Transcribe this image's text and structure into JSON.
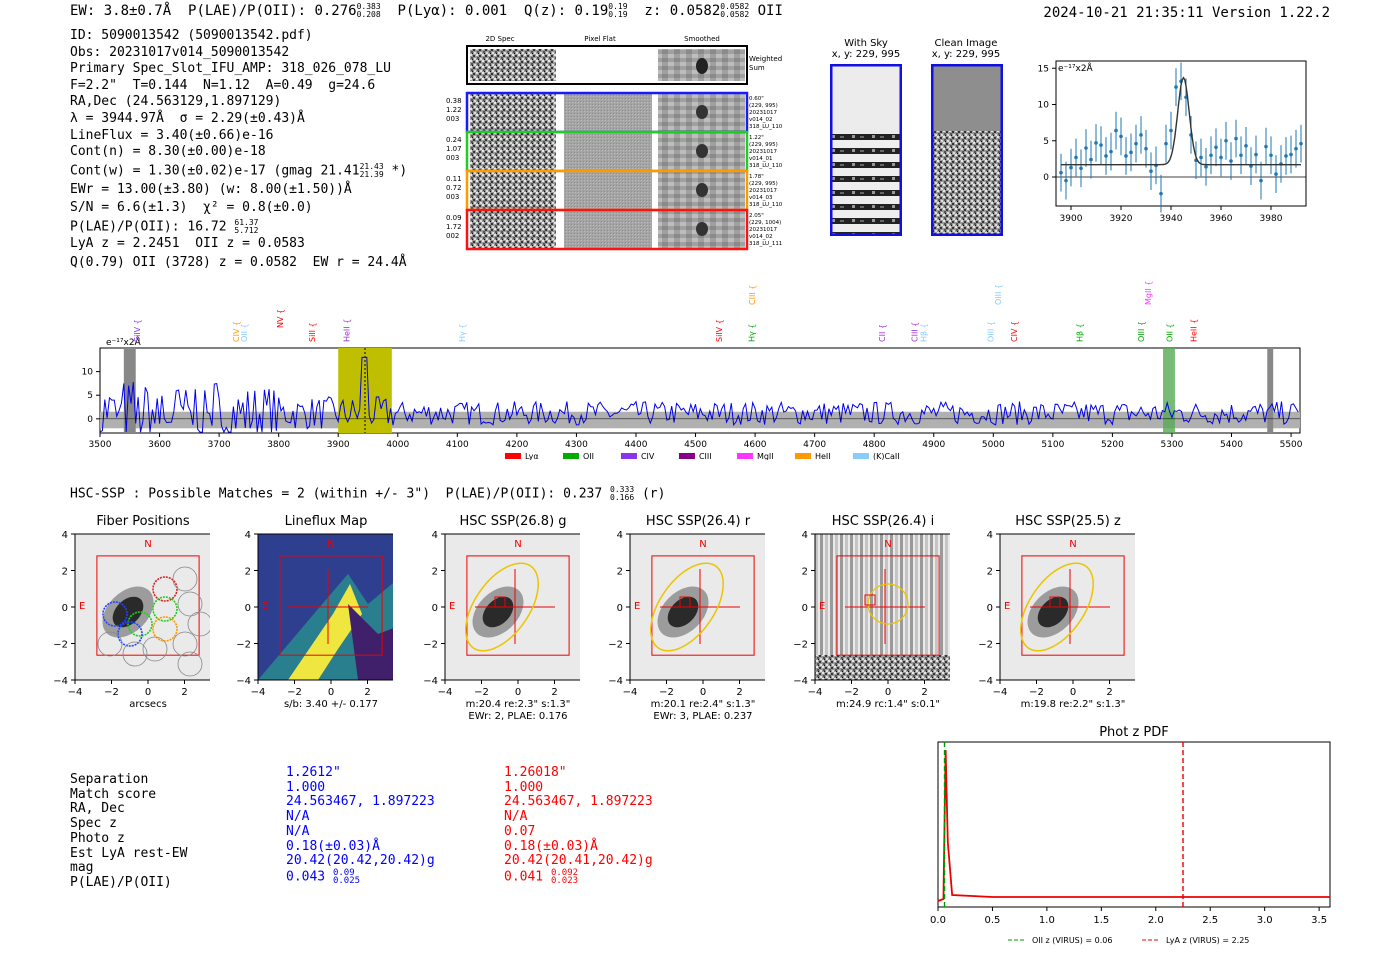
{
  "header": {
    "ew": "EW: 3.8±0.7Å",
    "plae_lbl": "P(LAE)/P(OII): 0.276",
    "plae_hi": "0.383",
    "plae_lo": "0.208",
    "plya": "P(Lyα): 0.001",
    "qz_lbl": "Q(z): 0.19",
    "qz_hi": "0.19",
    "qz_lo": "0.19",
    "z_lbl": "z: 0.0582",
    "z_hi": "0.0582",
    "z_lo": "0.0582",
    "z_line": "OII",
    "timestamp": "2024-10-21 21:35:11  Version 1.22.2"
  },
  "info": {
    "lines": [
      "ID: 5090013542 (5090013542.pdf)",
      "Obs: 20231017v014_5090013542",
      "Primary Spec_Slot_IFU_AMP: 318_026_078_LU",
      "F=2.2\"  T=0.144  N=1.12  A=0.49  g=24.6",
      "RA,Dec (24.563129,1.897129)",
      "λ = 3944.97Å  σ = 2.29(±0.43)Å",
      "LineFlux = 3.40(±0.66)e-16",
      "Cont(n) = 8.30(±0.00)e-18"
    ],
    "contw": "Cont(w) = 1.30(±0.02)e-17 (gmag 21.41",
    "contw_hi": "21.43",
    "contw_lo": "21.39",
    "contw_end": " *)",
    "ewr": "EWr = 13.00(±3.80) (w: 8.00(±1.50))Å",
    "sn": "S/N = 6.6(±1.3)  χ² = 0.8(±0.0)",
    "plae": "P(LAE)/P(OII): 16.72",
    "plae_hi": "61.37",
    "plae_lo": "5.712",
    "lya": "LyA z = 2.2451  OII z = 0.0583",
    "q": "Q(0.79) OII (3728) z = 0.0582  EW r = 24.4Å"
  },
  "cutouts": {
    "headers": [
      "2D Spec",
      "Pixel Flat",
      "Smoothed"
    ],
    "weighted": "Weighted\nSum",
    "rows": [
      {
        "left": [
          "0.38",
          "1.22",
          "003"
        ],
        "right": [
          "0.60\"",
          "(229, 995)",
          "20231017",
          "v014_02",
          "318_LU_110"
        ],
        "color": "#1a1aff"
      },
      {
        "left": [
          "0.24",
          "1.07",
          "003"
        ],
        "right": [
          "1.22\"",
          "(229, 995)",
          "20231017",
          "v014_01",
          "318_LU_110"
        ],
        "color": "#22cc22"
      },
      {
        "left": [
          "0.11",
          "0.72",
          "003"
        ],
        "right": [
          "1.78\"",
          "(229, 995)",
          "20231017",
          "v014_03",
          "318_LU_110"
        ],
        "color": "#ff9900"
      },
      {
        "left": [
          "0.09",
          "1.72",
          "002"
        ],
        "right": [
          "2.05\"",
          "(229, 1004)",
          "20231017",
          "v014_02",
          "318_LU_111"
        ],
        "color": "#ff1111"
      }
    ],
    "sky_title": "With Sky",
    "sky_coord": "x, y: 229, 995",
    "clean_title": "Clean Image",
    "clean_coord": "x, y: 229, 995"
  },
  "colors": {
    "blue": "#0000ff",
    "red": "#ff0000",
    "spec": "#1f77b4",
    "grey": "#b0b0b0",
    "olive": "#bfbf00",
    "green": "#55aa55"
  },
  "zoom_chart": {
    "type": "scatter",
    "ylabel": "e⁻¹⁷x2Å",
    "xlim": [
      3894,
      3994
    ],
    "ylim": [
      -4,
      16
    ],
    "xticks": [
      3900,
      3920,
      3940,
      3960,
      3980
    ],
    "yticks": [
      0,
      5,
      10,
      15
    ],
    "fit_center": 3944.97,
    "fit_sigma": 2.29,
    "fit_amp": 12,
    "fit_base": 1.7,
    "x": [
      3896,
      3898,
      3900,
      3902,
      3904,
      3906,
      3908,
      3910,
      3912,
      3914,
      3916,
      3918,
      3920,
      3922,
      3924,
      3926,
      3928,
      3930,
      3932,
      3934,
      3936,
      3938,
      3940,
      3942,
      3944,
      3946,
      3948,
      3950,
      3952,
      3954,
      3956,
      3958,
      3960,
      3962,
      3964,
      3966,
      3968,
      3970,
      3972,
      3974,
      3976,
      3978,
      3980,
      3982,
      3984,
      3986,
      3988,
      3990,
      3992
    ],
    "y": [
      0.6,
      -0.5,
      1.3,
      2.7,
      1.2,
      4.0,
      2.4,
      4.7,
      4.4,
      2.9,
      3.5,
      6.4,
      5.6,
      2.9,
      3.4,
      4.6,
      5.8,
      3.9,
      0.8,
      1.6,
      -2.3,
      4.6,
      6.4,
      12.4,
      13.2,
      11.0,
      5.8,
      2.3,
      2.7,
      1.4,
      3.0,
      4.1,
      2.7,
      5.0,
      2.2,
      5.3,
      3.0,
      4.3,
      1.5,
      3.1,
      -0.5,
      4.2,
      3.0,
      0.4,
      1.8,
      2.9,
      3.1,
      3.9,
      4.6
    ]
  },
  "full_chart": {
    "type": "line",
    "ylabel": "e⁻¹⁷x2Å",
    "xlim": [
      3500,
      5515
    ],
    "ylim": [
      -3,
      15
    ],
    "xticks": [
      3500,
      3600,
      3700,
      3800,
      3900,
      4000,
      4100,
      4200,
      4300,
      4400,
      4500,
      4600,
      4700,
      4800,
      4900,
      5000,
      5100,
      5200,
      5300,
      5400,
      5500
    ],
    "yticks": [
      0,
      5,
      10
    ],
    "lines": [
      {
        "name": "SiIV",
        "x": 3562,
        "color": "#8833ee",
        "row": 0
      },
      {
        "name": "CIV",
        "x": 3728,
        "color": "#ff9900",
        "row": 0
      },
      {
        "name": "OII",
        "x": 3742,
        "color": "#88ccff",
        "row": 0
      },
      {
        "name": "NV",
        "x": 3802,
        "color": "#ff0000",
        "row": 1
      },
      {
        "name": "SiII",
        "x": 3856,
        "color": "#ff0000",
        "row": 0
      },
      {
        "name": "HeII",
        "x": 3914,
        "color": "#9933cc",
        "row": 0
      },
      {
        "name": "Hγ",
        "x": 4108,
        "color": "#88ccff",
        "row": 0
      },
      {
        "name": "SiIV",
        "x": 4539,
        "color": "#ff0000",
        "row": 0
      },
      {
        "name": "Hγ",
        "x": 4594,
        "color": "#00aa00",
        "row": 0
      },
      {
        "name": "CIII",
        "x": 4595,
        "color": "#ff9900",
        "row": 2
      },
      {
        "name": "CII",
        "x": 4813,
        "color": "#9933cc",
        "row": 0
      },
      {
        "name": "CIII",
        "x": 4868,
        "color": "#9933cc",
        "row": 0
      },
      {
        "name": "Hβ",
        "x": 4883,
        "color": "#88ccff",
        "row": 0
      },
      {
        "name": "OIII",
        "x": 4995,
        "color": "#88ccff",
        "row": 0
      },
      {
        "name": "OIII",
        "x": 5008,
        "color": "#88ccff",
        "row": 2
      },
      {
        "name": "CIV",
        "x": 5035,
        "color": "#ff0000",
        "row": 0
      },
      {
        "name": "Hβ",
        "x": 5145,
        "color": "#00aa00",
        "row": 0
      },
      {
        "name": "MgII",
        "x": 5260,
        "color": "#ff33ff",
        "row": 2
      },
      {
        "name": "OIII",
        "x": 5248,
        "color": "#00aa00",
        "row": 0
      },
      {
        "name": "OII",
        "x": 5296,
        "color": "#00aa00",
        "row": 0
      },
      {
        "name": "HeII",
        "x": 5336,
        "color": "#ff0000",
        "row": 0
      }
    ],
    "bands": [
      {
        "x0": 3540,
        "x1": 3560,
        "color": "#888888"
      },
      {
        "x0": 3900,
        "x1": 3990,
        "color": "#bfbf00"
      },
      {
        "x0": 5285,
        "x1": 5305,
        "color": "#55aa55"
      },
      {
        "x0": 5460,
        "x1": 5470,
        "color": "#888888"
      }
    ],
    "legend": [
      "Lyα",
      "OII",
      "CIV",
      "CIII",
      "MgII",
      "HeII",
      "(K)CaII"
    ],
    "legend_colors": [
      "#ff0000",
      "#00aa00",
      "#8833ee",
      "#880088",
      "#ff33ff",
      "#ff9900",
      "#88ccff"
    ]
  },
  "hsc": {
    "line": "HSC-SSP : Possible Matches = 2 (within +/- 3\")  P(LAE)/P(OII): 0.237",
    "hi": "0.333",
    "lo": "0.166",
    "band": " (r)",
    "panels": [
      {
        "title": "Fiber Positions",
        "cap1": "arcsecs",
        "cap2": ""
      },
      {
        "title": "Lineflux Map",
        "cap1": "s/b: 3.40 +/- 0.177",
        "cap2": ""
      },
      {
        "title": "HSC SSP(26.8) g",
        "cap1": "m:20.4  re:2.3\"  s:1.3\"",
        "cap2": "EWr: 2, PLAE: 0.176"
      },
      {
        "title": "HSC SSP(26.4) r",
        "cap1": "m:20.1  re:2.4\"  s:1.3\"",
        "cap2": "EWr: 3, PLAE: 0.237"
      },
      {
        "title": "HSC SSP(26.4) i",
        "cap1": "m:24.9 rc:1.4\"  s:0.1\"",
        "cap2": ""
      },
      {
        "title": "HSC SSP(25.5) z",
        "cap1": "m:19.8  re:2.2\"  s:1.3\"",
        "cap2": ""
      }
    ],
    "ticks": [
      "4",
      "2",
      "0",
      "−2",
      "−4"
    ],
    "xticks": [
      "−4",
      "−2",
      "0",
      "2",
      "4"
    ],
    "N": "N",
    "E": "E"
  },
  "table": {
    "labels": [
      "Separation",
      "Match score",
      "RA, Dec",
      "Spec z",
      "Photo z",
      "Est LyA rest-EW",
      "mag",
      "P(LAE)/P(OII)"
    ],
    "col1": [
      "1.2612\"",
      "1.000",
      "24.563467, 1.897223",
      "N/A",
      "N/A",
      "0.18(±0.03)Å",
      "20.42(20.42,20.42)g"
    ],
    "col1_p": "0.043",
    "col1_hi": "0.09",
    "col1_lo": "0.025",
    "col2": [
      "1.26018\"",
      "1.000",
      "24.563467, 1.897223",
      "N/A",
      "0.07",
      "0.18(±0.03)Å",
      "20.42(20.41,20.42)g"
    ],
    "col2_p": "0.041",
    "col2_hi": "0.092",
    "col2_lo": "0.023"
  },
  "photz_chart": {
    "type": "line",
    "title": "Phot z PDF",
    "xlim": [
      0,
      3.6
    ],
    "xticks": [
      "0.0",
      "0.5",
      "1.0",
      "1.5",
      "2.0",
      "2.5",
      "3.0",
      "3.5"
    ],
    "oii_z": 0.06,
    "lya_z": 2.25,
    "legend_oii": "OII z (VIRUS) = 0.06",
    "legend_lya": "LyA z (VIRUS) = 2.25"
  }
}
